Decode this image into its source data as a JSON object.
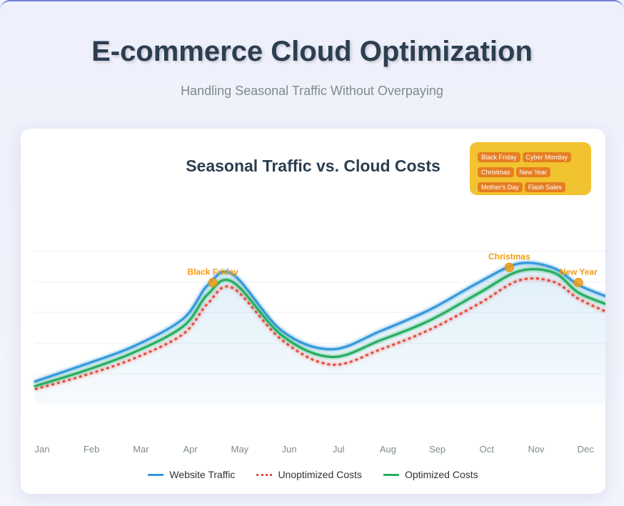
{
  "header": {
    "title": "E-commerce Cloud Optimization",
    "subtitle": "Handling Seasonal Traffic Without Overpaying"
  },
  "events_panel": {
    "tags": [
      "Black Friday",
      "Cyber Monday",
      "Christmas",
      "New Year",
      "Mother's Day",
      "Flash Sales"
    ]
  },
  "colors": {
    "traffic": "#3498db",
    "unoptimized": "#e74c3c",
    "optimized": "#27ae60",
    "event_marker": "#f39c12",
    "panel": "#f1c330"
  },
  "chart_data": {
    "type": "line",
    "title": "Seasonal Traffic vs. Cloud Costs",
    "categories": [
      "Jan",
      "Feb",
      "Mar",
      "Apr",
      "May",
      "Jun",
      "Jul",
      "Aug",
      "Sep",
      "Oct",
      "Nov",
      "Dec"
    ],
    "y_scale": "relative, unlabeled",
    "ylim": [
      0,
      11
    ],
    "grid": true,
    "legend_position": "bottom",
    "series": [
      {
        "name": "Website Traffic",
        "style": "solid",
        "fill": true,
        "x": [
          0,
          1,
          2,
          3,
          3.5,
          4,
          5,
          6,
          7,
          8,
          9,
          9.8,
          10.5,
          11,
          11.6
        ],
        "y": [
          1.5,
          2.6,
          3.8,
          5.6,
          7.8,
          8.5,
          4.8,
          3.6,
          4.8,
          6.2,
          8.0,
          9.2,
          8.9,
          7.8,
          7.0
        ]
      },
      {
        "name": "Unoptimized Costs",
        "style": "dotted",
        "fill": false,
        "x": [
          0,
          1,
          2,
          3,
          3.5,
          4,
          5,
          6,
          7,
          8,
          9,
          9.8,
          10.5,
          11,
          11.6
        ],
        "y": [
          1.0,
          1.9,
          3.0,
          4.6,
          6.6,
          7.6,
          4.2,
          2.6,
          3.6,
          4.9,
          6.6,
          8.1,
          8.0,
          6.9,
          6.0
        ]
      },
      {
        "name": "Optimized Costs",
        "style": "solid",
        "fill": false,
        "x": [
          0,
          1,
          2,
          3,
          3.5,
          4,
          5,
          6,
          7,
          8,
          9,
          9.8,
          10.5,
          11,
          11.6
        ],
        "y": [
          1.2,
          2.2,
          3.4,
          5.1,
          7.2,
          8.0,
          4.5,
          3.1,
          4.2,
          5.5,
          7.3,
          8.7,
          8.6,
          7.3,
          6.5
        ]
      }
    ],
    "annotations": [
      {
        "label": "Black Friday",
        "x": 3.6,
        "y": 7.95
      },
      {
        "label": "Christmas",
        "x": 9.6,
        "y": 8.95
      },
      {
        "label": "New Year",
        "x": 11.0,
        "y": 7.95
      }
    ]
  }
}
